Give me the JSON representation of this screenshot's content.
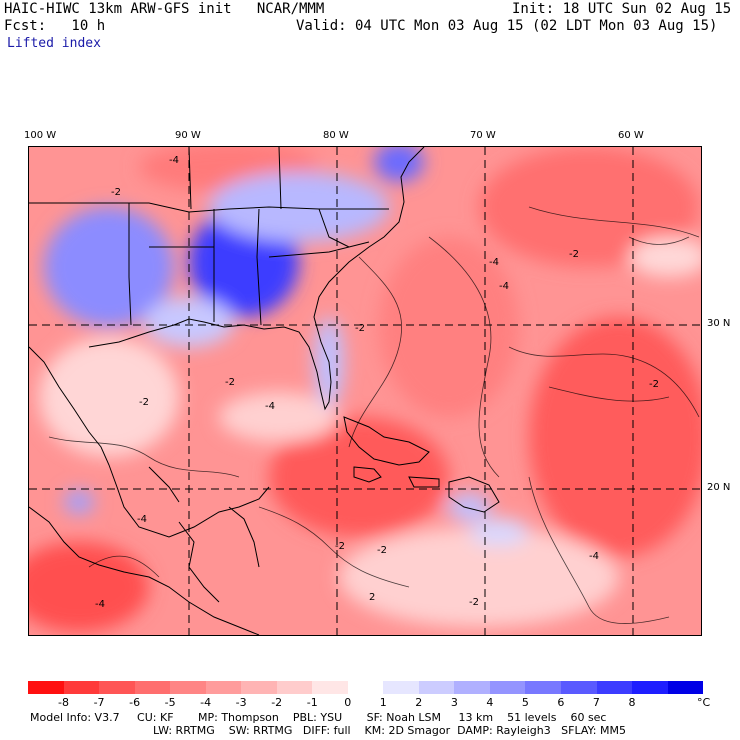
{
  "header": {
    "title": "HAIC-HIWC 13km ARW-GFS init   NCAR/MMM",
    "init": "Init: 18 UTC Sun 02 Aug 15",
    "fcst": "Fcst:   10 h",
    "valid": "Valid: 04 UTC Mon 03 Aug 15 (02 LDT Mon 03 Aug 15)",
    "field": "Lifted index"
  },
  "map": {
    "lon_labels": [
      "100 W",
      "90 W",
      "80 W",
      "70 W",
      "60 W"
    ],
    "lat_labels": [
      "30 N",
      "20 N"
    ],
    "contour_labels": [
      "-2",
      "-4",
      "2"
    ]
  },
  "colorbar": {
    "labels": [
      "-8",
      "-7",
      "-6",
      "-5",
      "-4",
      "-3",
      "-2",
      "-1",
      "0",
      "1",
      "2",
      "3",
      "4",
      "5",
      "6",
      "7",
      "8"
    ],
    "unit": "°C",
    "colors": [
      "#ff1010",
      "#ff3a3a",
      "#ff5555",
      "#ff6e6e",
      "#ff8585",
      "#ff9c9c",
      "#ffb4b4",
      "#ffcccc",
      "#ffe6e6",
      "#ffffff",
      "#e6e6ff",
      "#ccccff",
      "#b0b0ff",
      "#9494ff",
      "#7878ff",
      "#5a5aff",
      "#3c3cff",
      "#1e1eff",
      "#0000e6"
    ]
  },
  "footer": {
    "line1": "Model Info: V3.7     CU: KF       MP: Thompson    PBL: YSU       SF: Noah LSM     13 km    51 levels    60 sec",
    "line2": "LW: RRTMG    SW: RRTMG   DIFF: full    KM: 2D Smagor  DAMP: Rayleigh3   SFLAY: MM5"
  },
  "colors": {
    "warm": "#ff6e6e",
    "cool": "#6a6aff",
    "text_blue": "#1a1aa8"
  }
}
